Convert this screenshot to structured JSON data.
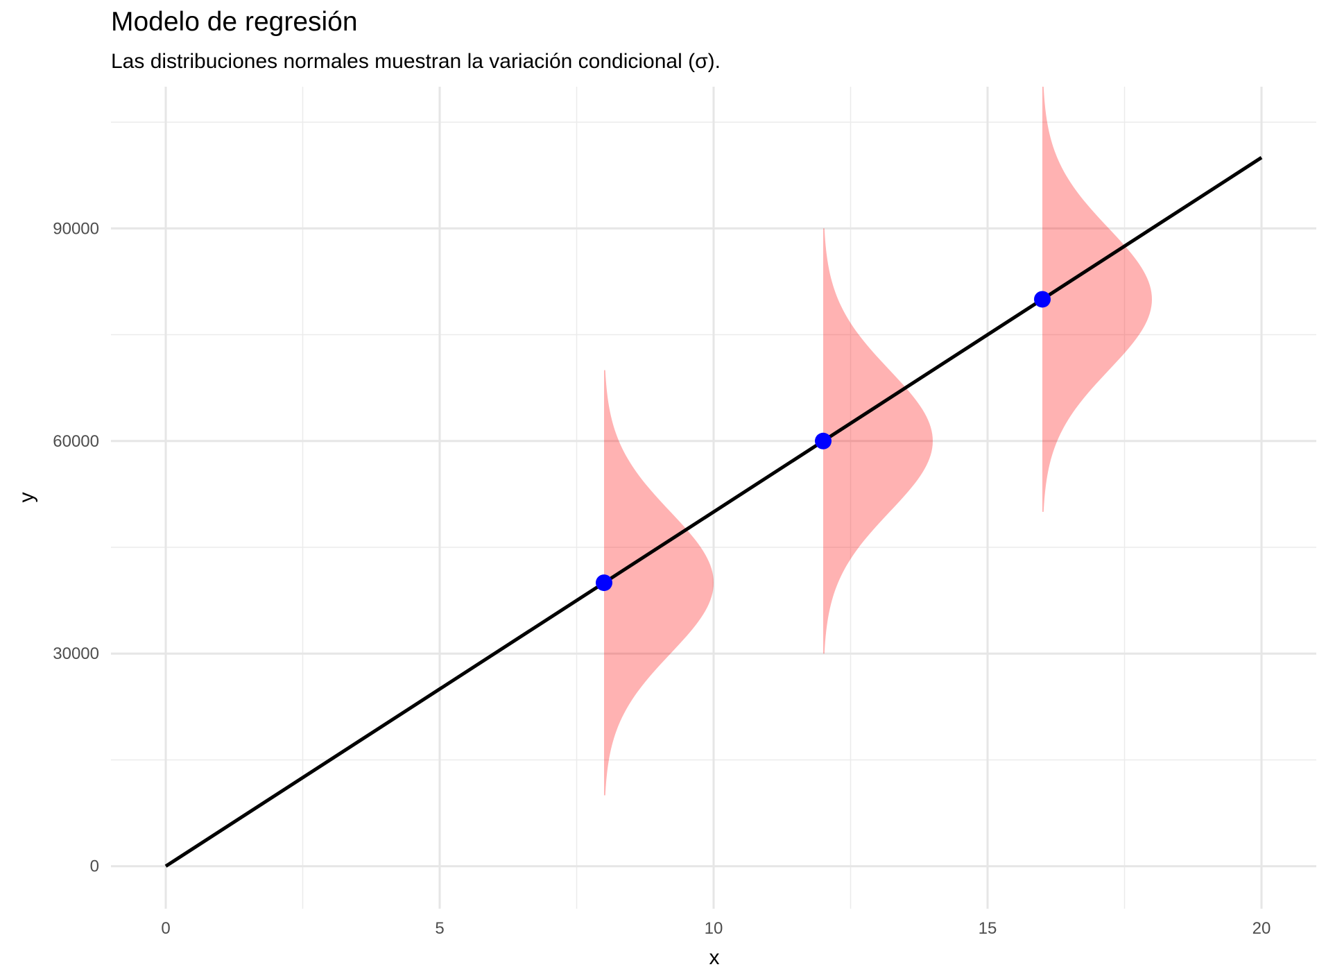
{
  "chart_data": {
    "type": "line",
    "title": "Modelo de regresión",
    "subtitle": "Las distribuciones normales muestran la variación condicional (σ).",
    "xlabel": "x",
    "ylabel": "y",
    "xlim": [
      -1,
      21
    ],
    "ylim": [
      -6000,
      110000
    ],
    "x_ticks": [
      0,
      5,
      10,
      15,
      20
    ],
    "y_ticks": [
      0,
      30000,
      60000,
      90000
    ],
    "x_minor_ticks": [
      2.5,
      7.5,
      12.5,
      17.5
    ],
    "y_minor_ticks": [
      15000,
      45000,
      75000,
      105000
    ],
    "grid": true,
    "regression_line": {
      "x": [
        0,
        20
      ],
      "y": [
        0,
        100000
      ],
      "color": "#000000"
    },
    "points": {
      "x": [
        8,
        12,
        16
      ],
      "y": [
        40000,
        60000,
        80000
      ],
      "color": "#0000ff"
    },
    "distributions": {
      "centers_x": [
        8,
        12,
        16
      ],
      "means_y": [
        40000,
        60000,
        80000
      ],
      "sigma": 10000,
      "range_sd": 3,
      "peak_width_x": 2,
      "color": "#ff0000",
      "opacity": 0.3
    }
  }
}
